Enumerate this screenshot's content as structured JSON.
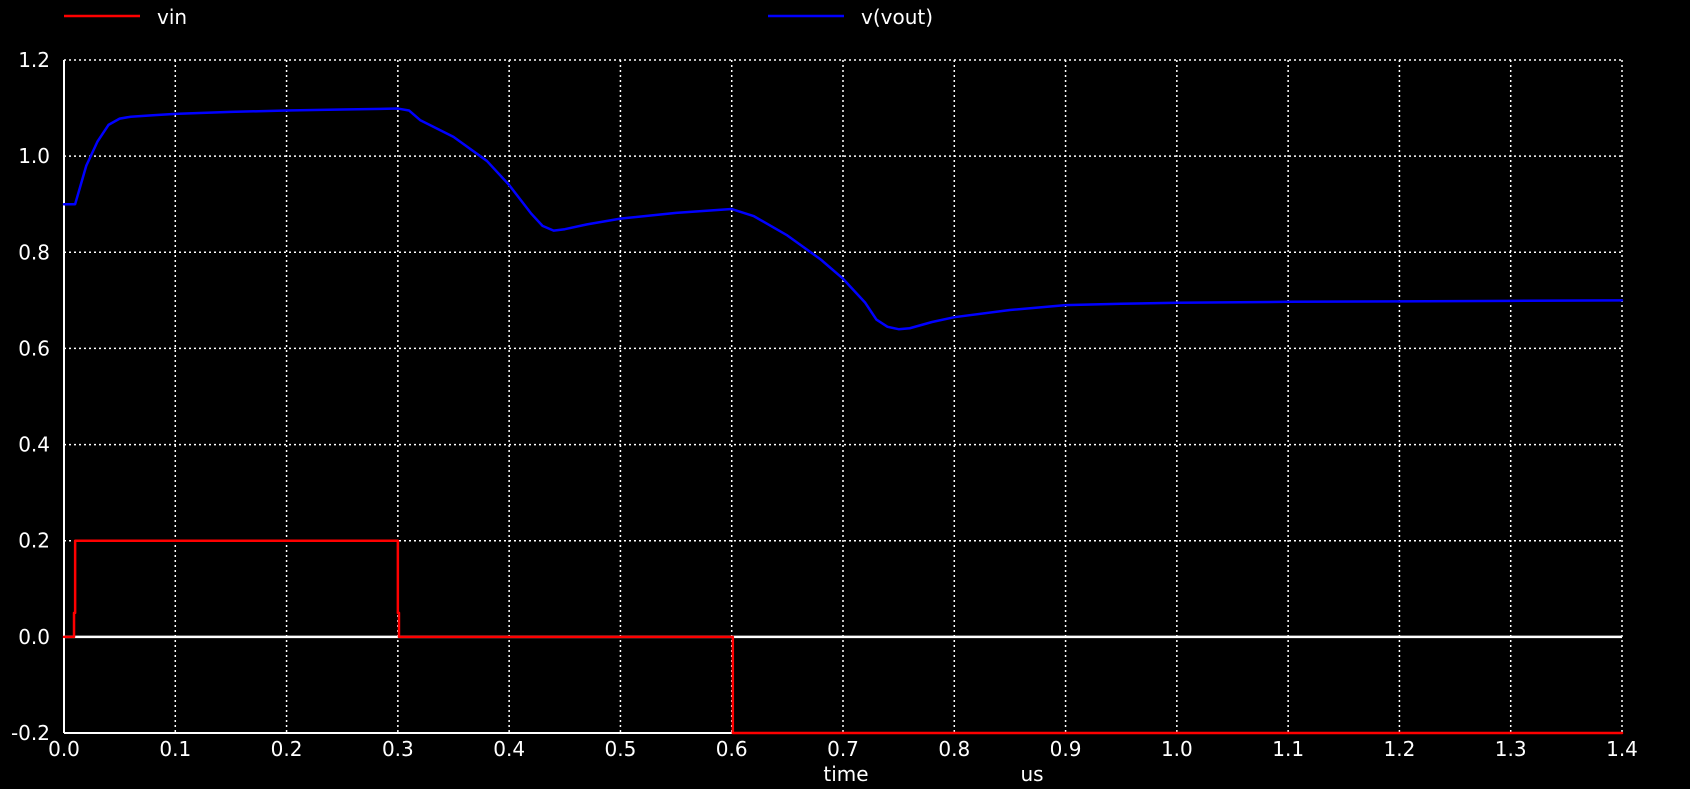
{
  "chart_data": {
    "type": "line",
    "title": "",
    "xlabel": "time",
    "xunit": "us",
    "ylabel": "",
    "xlim": [
      0.0,
      1.4
    ],
    "ylim": [
      -0.2,
      1.2
    ],
    "grid": true,
    "legend_placement": "top",
    "x_ticks": [
      "0.0",
      "0.1",
      "0.2",
      "0.3",
      "0.4",
      "0.5",
      "0.6",
      "0.7",
      "0.8",
      "0.9",
      "1.0",
      "1.1",
      "1.2",
      "1.3",
      "1.4"
    ],
    "y_ticks": [
      "1.2",
      "1.0",
      "0.8",
      "0.6",
      "0.4",
      "0.2",
      "0.0",
      "-0.2"
    ],
    "series": [
      {
        "name": "vin",
        "color": "#ff0000",
        "x": [
          0.0,
          0.009,
          0.009,
          0.01,
          0.01,
          0.3,
          0.3,
          0.301,
          0.301,
          0.6,
          0.6,
          0.601,
          0.601,
          1.4
        ],
        "y": [
          0.0,
          0.0,
          0.05,
          0.05,
          0.2,
          0.2,
          0.05,
          0.05,
          0.0,
          0.0,
          0.0,
          0.0,
          -0.2,
          -0.2
        ]
      },
      {
        "name": "v(vout)",
        "color": "#0000ff",
        "x": [
          0.0,
          0.01,
          0.015,
          0.02,
          0.03,
          0.04,
          0.05,
          0.06,
          0.08,
          0.1,
          0.15,
          0.2,
          0.25,
          0.3,
          0.31,
          0.32,
          0.35,
          0.38,
          0.4,
          0.42,
          0.43,
          0.44,
          0.45,
          0.47,
          0.5,
          0.55,
          0.6,
          0.62,
          0.65,
          0.68,
          0.7,
          0.72,
          0.73,
          0.74,
          0.75,
          0.76,
          0.78,
          0.8,
          0.85,
          0.9,
          0.95,
          1.0,
          1.1,
          1.2,
          1.3,
          1.4
        ],
        "y": [
          0.9,
          0.9,
          0.94,
          0.98,
          1.03,
          1.065,
          1.078,
          1.082,
          1.085,
          1.088,
          1.092,
          1.095,
          1.097,
          1.099,
          1.095,
          1.075,
          1.04,
          0.99,
          0.94,
          0.88,
          0.855,
          0.845,
          0.848,
          0.858,
          0.87,
          0.882,
          0.89,
          0.875,
          0.835,
          0.785,
          0.745,
          0.695,
          0.66,
          0.645,
          0.64,
          0.642,
          0.655,
          0.665,
          0.68,
          0.69,
          0.693,
          0.695,
          0.697,
          0.698,
          0.699,
          0.7
        ]
      }
    ]
  }
}
